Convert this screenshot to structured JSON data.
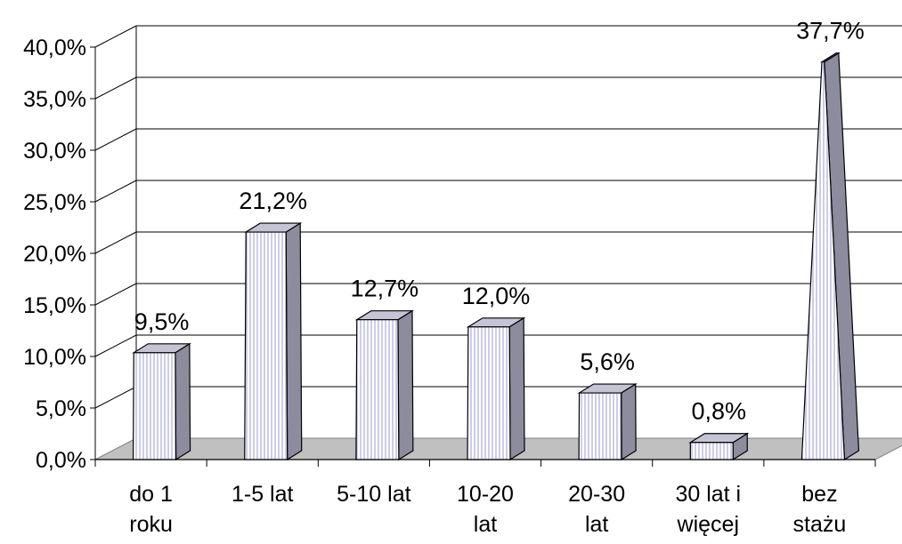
{
  "chart_data": {
    "type": "bar",
    "bar_shape": "pyramid-3d",
    "categories": [
      [
        "do 1",
        "roku"
      ],
      [
        "1-5 lat"
      ],
      [
        "5-10 lat"
      ],
      [
        "10-20",
        "lat"
      ],
      [
        "20-30",
        "lat"
      ],
      [
        "30 lat i",
        "więcej"
      ],
      [
        "bez",
        "stażu"
      ]
    ],
    "values": [
      9.5,
      21.2,
      12.7,
      12.0,
      5.6,
      0.8,
      37.7
    ],
    "value_labels": [
      "9,5%",
      "21,2%",
      "12,7%",
      "12,0%",
      "5,6%",
      "0,8%",
      "37,7%"
    ],
    "y_ticks": [
      "0,0%",
      "5,0%",
      "10,0%",
      "15,0%",
      "20,0%",
      "25,0%",
      "30,0%",
      "35,0%",
      "40,0%"
    ],
    "ylim": [
      0,
      40
    ],
    "grid": true,
    "legend": "none",
    "title": "",
    "xlabel": "",
    "ylabel": "",
    "colors": {
      "bar_face": "#ffffff",
      "bar_stripe": "#9a9ad6",
      "bar_side": "#8c8c9e",
      "bar_top": "#c4c4d4",
      "floor": "#c0c0c0",
      "grid": "#000000",
      "axis": "#808080"
    }
  }
}
